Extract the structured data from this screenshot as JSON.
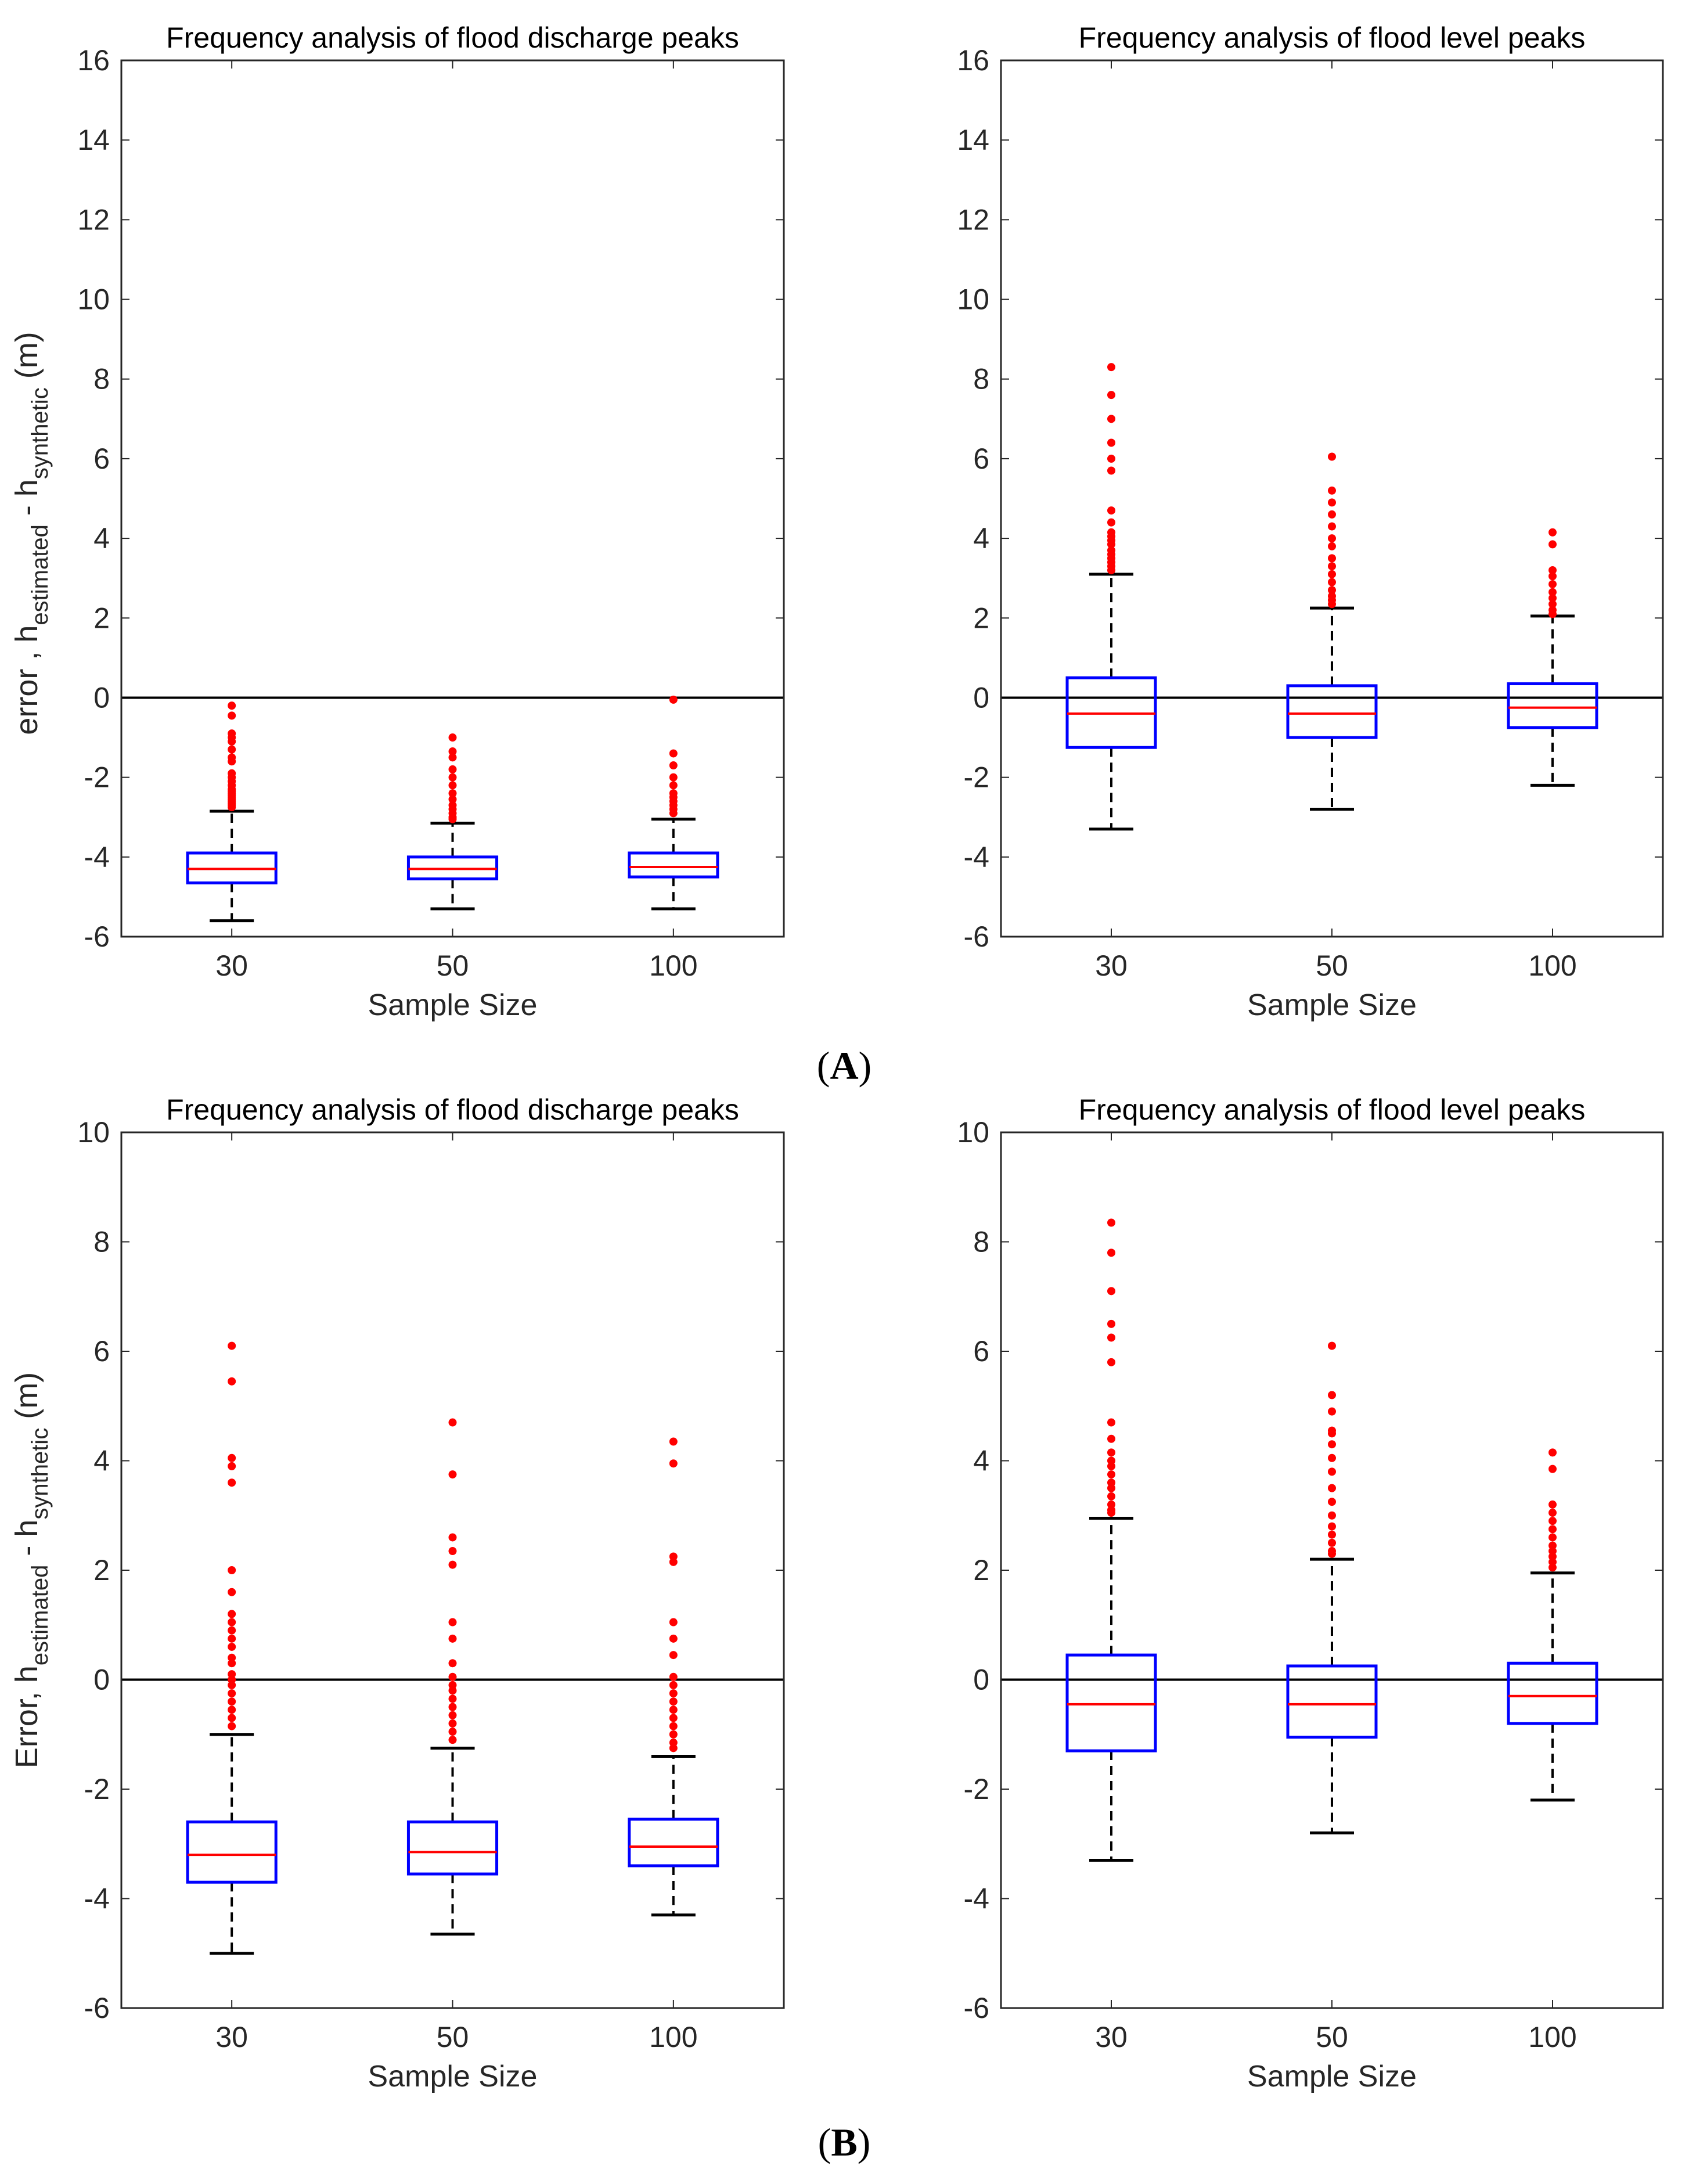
{
  "figure": {
    "panel_labels": [
      {
        "open": "(",
        "letter": "A",
        "close": ")"
      },
      {
        "open": "(",
        "letter": "B",
        "close": ")"
      }
    ]
  },
  "colors": {
    "box": "#0000ff",
    "median": "#ff0000",
    "outlier": "#ff0000",
    "whisker": "#000000",
    "zero_line": "#000000"
  },
  "chart_data": [
    {
      "type": "boxplot",
      "title": "Frequency analysis of flood discharge peaks",
      "xlabel": "Sample Size",
      "ylabel": {
        "main": "error , h",
        "sub1": "estimated",
        "mid": " - h",
        "sub2": "synthetic",
        "unit": " (m)"
      },
      "ylim": [
        -6,
        16
      ],
      "yticks": [
        -6,
        -4,
        -2,
        0,
        2,
        4,
        6,
        8,
        10,
        12,
        14,
        16
      ],
      "categories": [
        "30",
        "50",
        "100"
      ],
      "reference_line": 0,
      "boxes": [
        {
          "whisker_low": -5.6,
          "q1": -4.65,
          "median": -4.3,
          "q3": -3.9,
          "whisker_high": -2.85,
          "outliers": [
            -0.2,
            -0.45,
            -0.9,
            -1.0,
            -1.1,
            -1.3,
            -1.5,
            -1.6,
            -1.9,
            -2.0,
            -2.1,
            -2.2,
            -2.3,
            -2.35,
            -2.4,
            -2.45,
            -2.5,
            -2.55,
            -2.6,
            -2.65,
            -2.7,
            -2.75
          ]
        },
        {
          "whisker_low": -5.3,
          "q1": -4.55,
          "median": -4.3,
          "q3": -4.0,
          "whisker_high": -3.15,
          "outliers": [
            -1.0,
            -1.35,
            -1.5,
            -1.8,
            -2.0,
            -2.2,
            -2.4,
            -2.55,
            -2.7,
            -2.8,
            -2.9,
            -3.0,
            -3.05
          ]
        },
        {
          "whisker_low": -5.3,
          "q1": -4.5,
          "median": -4.25,
          "q3": -3.9,
          "whisker_high": -3.05,
          "outliers": [
            -0.05,
            -1.4,
            -1.7,
            -2.0,
            -2.2,
            -2.4,
            -2.5,
            -2.6,
            -2.7,
            -2.8,
            -2.9
          ]
        }
      ]
    },
    {
      "type": "boxplot",
      "title": "Frequency analysis of flood level peaks",
      "xlabel": "Sample Size",
      "ylim": [
        -6,
        16
      ],
      "yticks": [
        -6,
        -4,
        -2,
        0,
        2,
        4,
        6,
        8,
        10,
        12,
        14,
        16
      ],
      "categories": [
        "30",
        "50",
        "100"
      ],
      "reference_line": 0,
      "boxes": [
        {
          "whisker_low": -3.3,
          "q1": -1.25,
          "median": -0.4,
          "q3": 0.5,
          "whisker_high": 3.1,
          "outliers": [
            8.3,
            7.6,
            7.0,
            6.4,
            6.0,
            5.7,
            4.7,
            4.4,
            4.15,
            4.05,
            3.95,
            3.85,
            3.7,
            3.6,
            3.5,
            3.4,
            3.3,
            3.2
          ]
        },
        {
          "whisker_low": -2.8,
          "q1": -1.0,
          "median": -0.4,
          "q3": 0.3,
          "whisker_high": 2.25,
          "outliers": [
            6.05,
            5.2,
            4.9,
            4.6,
            4.3,
            4.0,
            3.8,
            3.5,
            3.3,
            3.1,
            2.9,
            2.7,
            2.55,
            2.45,
            2.35
          ]
        },
        {
          "whisker_low": -2.2,
          "q1": -0.75,
          "median": -0.25,
          "q3": 0.35,
          "whisker_high": 2.05,
          "outliers": [
            4.15,
            3.85,
            3.2,
            3.05,
            2.85,
            2.65,
            2.5,
            2.35,
            2.2,
            2.1
          ]
        }
      ]
    },
    {
      "type": "boxplot",
      "title": "Frequency analysis of flood discharge peaks",
      "xlabel": "Sample Size",
      "ylabel": {
        "main": "Error, h",
        "sub1": "estimated",
        "mid": "  - h",
        "sub2": "synthetic",
        "unit": "  (m)"
      },
      "ylim": [
        -6,
        10
      ],
      "yticks": [
        -6,
        -4,
        -2,
        0,
        2,
        4,
        6,
        8,
        10
      ],
      "categories": [
        "30",
        "50",
        "100"
      ],
      "reference_line": 0,
      "boxes": [
        {
          "whisker_low": -5.0,
          "q1": -3.7,
          "median": -3.2,
          "q3": -2.6,
          "whisker_high": -1.0,
          "outliers": [
            6.1,
            5.45,
            4.05,
            3.9,
            3.6,
            2.0,
            1.6,
            1.2,
            1.05,
            0.9,
            0.75,
            0.6,
            0.4,
            0.3,
            0.1,
            0.0,
            -0.1,
            -0.25,
            -0.4,
            -0.55,
            -0.7,
            -0.85
          ]
        },
        {
          "whisker_low": -4.65,
          "q1": -3.55,
          "median": -3.15,
          "q3": -2.6,
          "whisker_high": -1.25,
          "outliers": [
            4.7,
            3.75,
            2.6,
            2.35,
            2.1,
            1.05,
            0.75,
            0.3,
            0.05,
            -0.1,
            -0.2,
            -0.35,
            -0.5,
            -0.65,
            -0.8,
            -0.95,
            -1.1
          ]
        },
        {
          "whisker_low": -4.3,
          "q1": -3.4,
          "median": -3.05,
          "q3": -2.55,
          "whisker_high": -1.4,
          "outliers": [
            4.35,
            3.95,
            2.25,
            2.15,
            1.05,
            0.75,
            0.45,
            0.05,
            -0.1,
            -0.25,
            -0.4,
            -0.55,
            -0.7,
            -0.85,
            -1.0,
            -1.15,
            -1.25
          ]
        }
      ]
    },
    {
      "type": "boxplot",
      "title": "Frequency analysis of flood level peaks",
      "xlabel": "Sample Size",
      "ylim": [
        -6,
        10
      ],
      "yticks": [
        -6,
        -4,
        -2,
        0,
        2,
        4,
        6,
        8,
        10
      ],
      "categories": [
        "30",
        "50",
        "100"
      ],
      "reference_line": 0,
      "boxes": [
        {
          "whisker_low": -3.3,
          "q1": -1.3,
          "median": -0.45,
          "q3": 0.45,
          "whisker_high": 2.95,
          "outliers": [
            8.35,
            7.8,
            7.1,
            6.5,
            6.25,
            5.8,
            4.7,
            4.4,
            4.15,
            4.0,
            3.9,
            3.75,
            3.6,
            3.5,
            3.35,
            3.2,
            3.1,
            3.05
          ]
        },
        {
          "whisker_low": -2.8,
          "q1": -1.05,
          "median": -0.45,
          "q3": 0.25,
          "whisker_high": 2.2,
          "outliers": [
            6.1,
            5.2,
            4.9,
            4.55,
            4.5,
            4.3,
            4.05,
            3.8,
            3.5,
            3.25,
            3.0,
            2.8,
            2.65,
            2.5,
            2.35,
            2.3
          ]
        },
        {
          "whisker_low": -2.2,
          "q1": -0.8,
          "median": -0.3,
          "q3": 0.3,
          "whisker_high": 1.95,
          "outliers": [
            4.15,
            3.85,
            3.2,
            3.05,
            2.9,
            2.75,
            2.6,
            2.45,
            2.35,
            2.25,
            2.15,
            2.05
          ]
        }
      ]
    }
  ]
}
